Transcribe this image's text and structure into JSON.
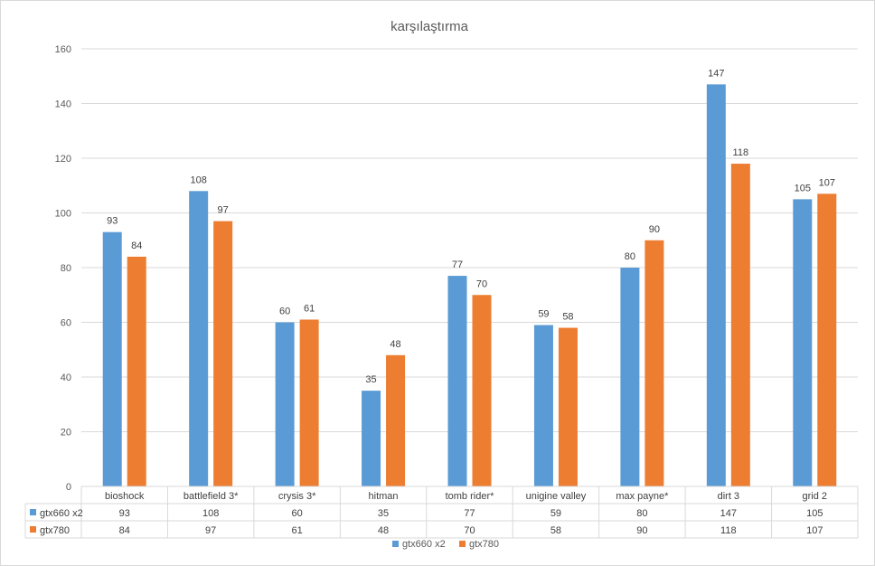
{
  "chart_data": {
    "type": "bar",
    "title": "karşılaştırma",
    "categories": [
      "bioshock",
      "battlefield 3*",
      "crysis 3*",
      "hitman",
      "tomb rider*",
      "unigine valley",
      "max payne*",
      "dirt 3",
      "grid 2"
    ],
    "series": [
      {
        "name": "gtx660 x2",
        "color": "#5b9bd5",
        "values": [
          93,
          108,
          60,
          35,
          77,
          59,
          80,
          147,
          105
        ]
      },
      {
        "name": "gtx780",
        "color": "#ed7d31",
        "values": [
          84,
          97,
          61,
          48,
          70,
          58,
          90,
          118,
          107
        ]
      }
    ],
    "ylim": [
      0,
      160
    ],
    "yticks": [
      0,
      20,
      40,
      60,
      80,
      100,
      120,
      140,
      160
    ],
    "grid": true,
    "data_labels": true,
    "data_table": true,
    "legend": "bottom"
  }
}
